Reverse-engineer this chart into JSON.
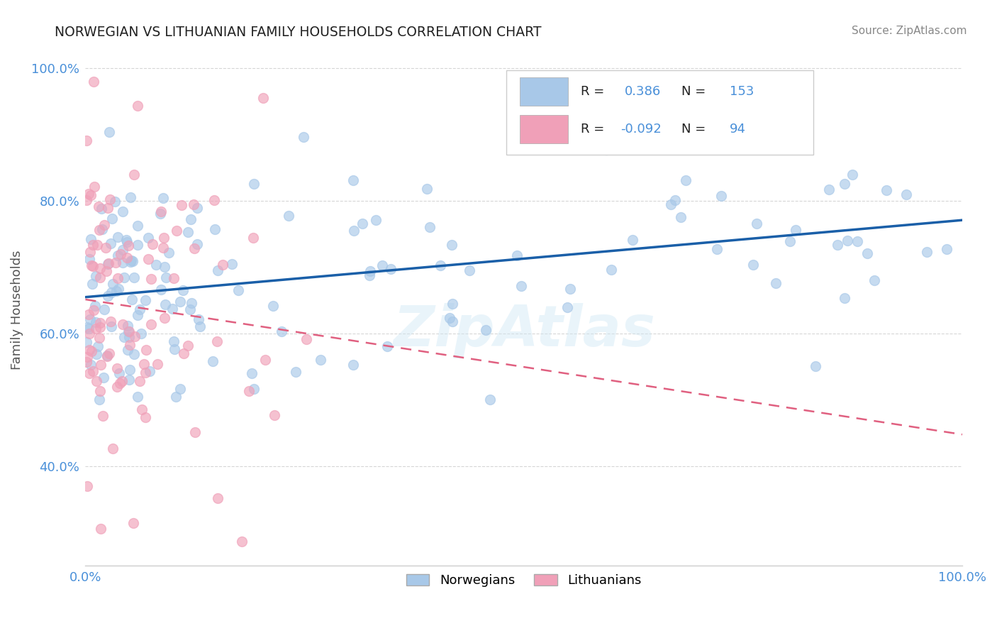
{
  "title": "NORWEGIAN VS LITHUANIAN FAMILY HOUSEHOLDS CORRELATION CHART",
  "source": "Source: ZipAtlas.com",
  "ylabel": "Family Households",
  "xlim": [
    0.0,
    1.0
  ],
  "ylim": [
    0.25,
    1.02
  ],
  "norwegian_R": 0.386,
  "norwegian_N": 153,
  "lithuanian_R": -0.092,
  "lithuanian_N": 94,
  "norwegian_color": "#a8c8e8",
  "lithuanian_color": "#f0a0b8",
  "norwegian_line_color": "#1a5fa8",
  "lithuanian_line_color": "#e06080",
  "background_color": "#ffffff",
  "grid_color": "#cccccc",
  "watermark": "ZipAtlas",
  "title_color": "#222222",
  "axis_label_color": "#555555",
  "tick_label_color": "#4a90d9",
  "r_label_color": "#000000",
  "source_color": "#888888"
}
